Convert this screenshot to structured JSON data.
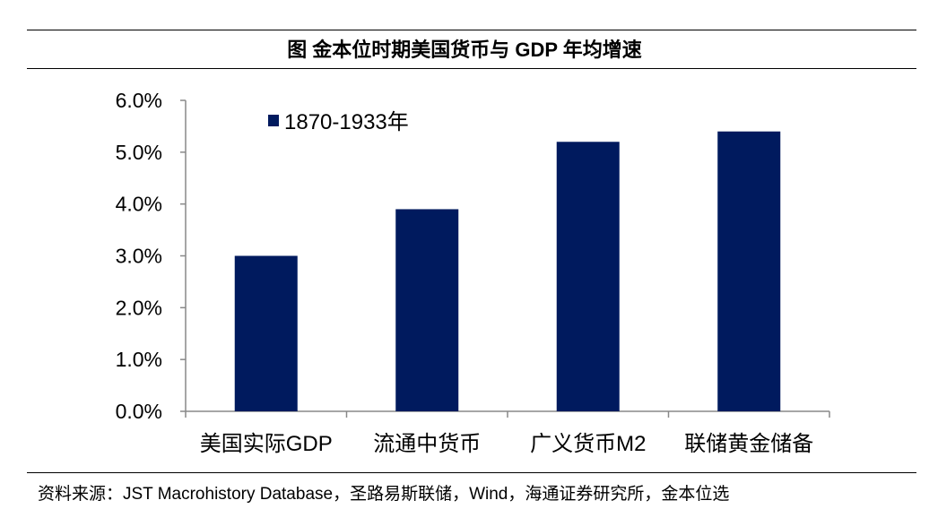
{
  "title": "图  金本位时期美国货币与 GDP 年均增速",
  "source": "资料来源：JST Macrohistory Database，圣路易斯联储，Wind，海通证券研究所，金本位选",
  "chart_data": {
    "type": "bar",
    "title": "图  金本位时期美国货币与 GDP 年均增速",
    "categories": [
      "美国实际GDP",
      "流通中货币",
      "广义货币M2",
      "联储黄金储备"
    ],
    "series": [
      {
        "name": "1870-1933年",
        "values": [
          3.0,
          3.9,
          5.2,
          5.4
        ],
        "color": "#001A5E"
      }
    ],
    "ylim": [
      0,
      6
    ],
    "yticks": [
      "0.0%",
      "1.0%",
      "2.0%",
      "3.0%",
      "4.0%",
      "5.0%",
      "6.0%"
    ],
    "unit": "%",
    "grid": false,
    "legend": "top-left"
  }
}
